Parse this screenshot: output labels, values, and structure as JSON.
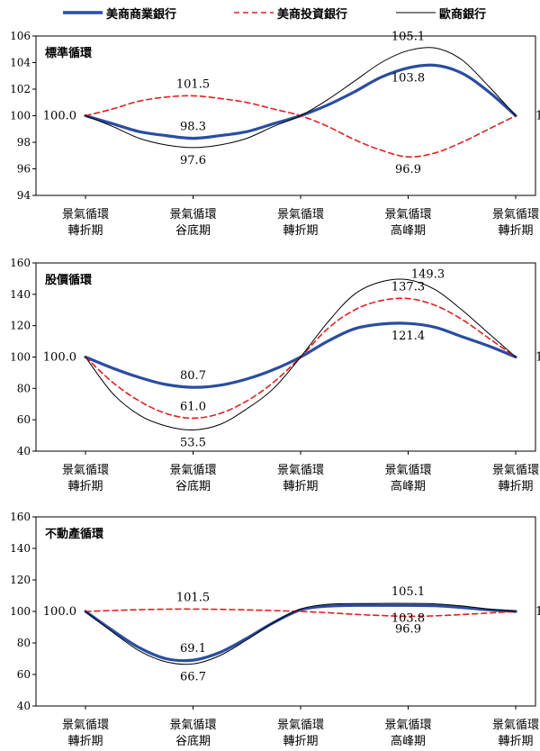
{
  "legend": {
    "items": [
      {
        "name": "美商商業銀行",
        "color": "#2a4da0",
        "style": "solid-thick"
      },
      {
        "name": "美商投資銀行",
        "color": "#e02020",
        "style": "dashed"
      },
      {
        "name": "歐商銀行",
        "color": "#000000",
        "style": "solid-thin"
      }
    ]
  },
  "chart_data": [
    {
      "type": "line",
      "title": "標準循環",
      "ylim": [
        94,
        106
      ],
      "yticks": [
        94,
        96,
        98,
        100,
        102,
        104,
        106
      ],
      "categories": [
        [
          "景氣循環",
          "轉折期"
        ],
        [
          "景氣循環",
          "谷底期"
        ],
        [
          "景氣循環",
          "轉折期"
        ],
        [
          "景氣循環",
          "高峰期"
        ],
        [
          "景氣循環",
          "轉折期"
        ]
      ],
      "x": [
        0,
        0.25,
        0.5,
        0.75,
        1,
        1.25,
        1.5,
        1.75,
        2,
        2.25,
        2.5,
        2.75,
        3,
        3.25,
        3.5,
        3.75,
        4
      ],
      "series": [
        {
          "name": "美商商業銀行",
          "values": [
            100,
            99.4,
            98.8,
            98.5,
            98.3,
            98.5,
            98.8,
            99.4,
            100,
            100.8,
            101.8,
            102.9,
            103.6,
            103.8,
            103.2,
            101.8,
            100
          ]
        },
        {
          "name": "美商投資銀行",
          "values": [
            100,
            100.5,
            101.1,
            101.4,
            101.5,
            101.3,
            101.0,
            100.5,
            100,
            99.2,
            98.2,
            97.4,
            96.9,
            97.2,
            98.0,
            99.0,
            100
          ]
        },
        {
          "name": "歐商銀行",
          "values": [
            100,
            99.2,
            98.3,
            97.8,
            97.6,
            97.8,
            98.3,
            99.2,
            100,
            101.2,
            102.6,
            104.0,
            104.9,
            105.1,
            104.2,
            102.2,
            100
          ]
        }
      ],
      "annotations": [
        {
          "text": "100.0",
          "x": 0,
          "y": 100,
          "pos": "left"
        },
        {
          "text": "101.5",
          "x": 1,
          "y": 101.5,
          "pos": "above"
        },
        {
          "text": "98.3",
          "x": 1,
          "y": 98.3,
          "pos": "above"
        },
        {
          "text": "97.6",
          "x": 1,
          "y": 97.6,
          "pos": "below"
        },
        {
          "text": "105.1",
          "x": 3,
          "y": 105.1,
          "pos": "above"
        },
        {
          "text": "103.8",
          "x": 3,
          "y": 103.8,
          "pos": "below"
        },
        {
          "text": "96.9",
          "x": 3,
          "y": 96.9,
          "pos": "below"
        },
        {
          "text": "100.0",
          "x": 4,
          "y": 100,
          "pos": "right"
        }
      ]
    },
    {
      "type": "line",
      "title": "股價循環",
      "ylim": [
        40,
        160
      ],
      "yticks": [
        40,
        60,
        80,
        100,
        120,
        140,
        160
      ],
      "categories": [
        [
          "景氣循環",
          "轉折期"
        ],
        [
          "景氣循環",
          "谷底期"
        ],
        [
          "景氣循環",
          "轉折期"
        ],
        [
          "景氣循環",
          "高峰期"
        ],
        [
          "景氣循環",
          "轉折期"
        ]
      ],
      "x": [
        0,
        0.25,
        0.5,
        0.75,
        1,
        1.25,
        1.5,
        1.75,
        2,
        2.25,
        2.5,
        2.75,
        3,
        3.25,
        3.5,
        3.75,
        4
      ],
      "series": [
        {
          "name": "美商商業銀行",
          "values": [
            100,
            93,
            87,
            82.5,
            80.7,
            82,
            86,
            92,
            100,
            110,
            118,
            121,
            121.4,
            119,
            113,
            107,
            100
          ]
        },
        {
          "name": "美商投資銀行",
          "values": [
            100,
            84,
            72,
            64,
            61.0,
            64,
            72,
            84,
            100,
            118,
            130,
            136,
            137.3,
            133,
            124,
            112,
            100
          ]
        },
        {
          "name": "歐商銀行",
          "values": [
            100,
            77,
            63,
            56,
            53.5,
            57,
            67,
            80,
            100,
            122,
            140,
            148,
            149.3,
            143,
            130,
            115,
            100
          ]
        }
      ],
      "annotations": [
        {
          "text": "100.0",
          "x": 0,
          "y": 100,
          "pos": "left"
        },
        {
          "text": "80.7",
          "x": 1,
          "y": 80.7,
          "pos": "above"
        },
        {
          "text": "61.0",
          "x": 1,
          "y": 61.0,
          "pos": "above"
        },
        {
          "text": "53.5",
          "x": 1,
          "y": 53.5,
          "pos": "below"
        },
        {
          "text": "149.3",
          "x": 3,
          "y": 149.3,
          "pos": "above-right"
        },
        {
          "text": "137.3",
          "x": 3,
          "y": 137.3,
          "pos": "above"
        },
        {
          "text": "121.4",
          "x": 3,
          "y": 121.4,
          "pos": "below"
        },
        {
          "text": "100.0",
          "x": 4,
          "y": 100,
          "pos": "right"
        }
      ]
    },
    {
      "type": "line",
      "title": "不動產循環",
      "ylim": [
        40,
        160
      ],
      "yticks": [
        40,
        60,
        80,
        100,
        120,
        140,
        160
      ],
      "categories": [
        [
          "景氣循環",
          "轉折期"
        ],
        [
          "景氣循環",
          "谷底期"
        ],
        [
          "景氣循環",
          "轉折期"
        ],
        [
          "景氣循環",
          "高峰期"
        ],
        [
          "景氣循環",
          "轉折期"
        ]
      ],
      "x": [
        0,
        0.25,
        0.5,
        0.75,
        1,
        1.25,
        1.5,
        1.75,
        2,
        2.25,
        2.5,
        2.75,
        3,
        3.25,
        3.5,
        3.75,
        4
      ],
      "series": [
        {
          "name": "美商商業銀行",
          "values": [
            100,
            88,
            77,
            70,
            69.1,
            74,
            83,
            93,
            101,
            103.3,
            103.8,
            103.8,
            103.8,
            103.6,
            102.5,
            101,
            100
          ]
        },
        {
          "name": "美商投資銀行",
          "values": [
            100,
            100.6,
            101.1,
            101.4,
            101.5,
            101.3,
            101.0,
            100.5,
            100,
            99.2,
            98.2,
            97.4,
            96.9,
            97.2,
            98.0,
            99.0,
            100
          ]
        },
        {
          "name": "歐商銀行",
          "values": [
            100,
            87,
            75,
            68,
            66.7,
            72,
            82,
            93,
            101.5,
            104.5,
            105.0,
            105.1,
            105.1,
            104.8,
            103.5,
            101.5,
            100
          ]
        }
      ],
      "annotations": [
        {
          "text": "100.0",
          "x": 0,
          "y": 100,
          "pos": "left"
        },
        {
          "text": "101.5",
          "x": 1,
          "y": 101.5,
          "pos": "above"
        },
        {
          "text": "69.1",
          "x": 1,
          "y": 69.1,
          "pos": "above"
        },
        {
          "text": "66.7",
          "x": 1,
          "y": 66.7,
          "pos": "below"
        },
        {
          "text": "105.1",
          "x": 3,
          "y": 105.1,
          "pos": "above"
        },
        {
          "text": "103.8",
          "x": 3,
          "y": 103.8,
          "pos": "below"
        },
        {
          "text": "96.9",
          "x": 3,
          "y": 96.9,
          "pos": "below"
        },
        {
          "text": "100.0",
          "x": 4,
          "y": 100,
          "pos": "right"
        }
      ]
    }
  ]
}
